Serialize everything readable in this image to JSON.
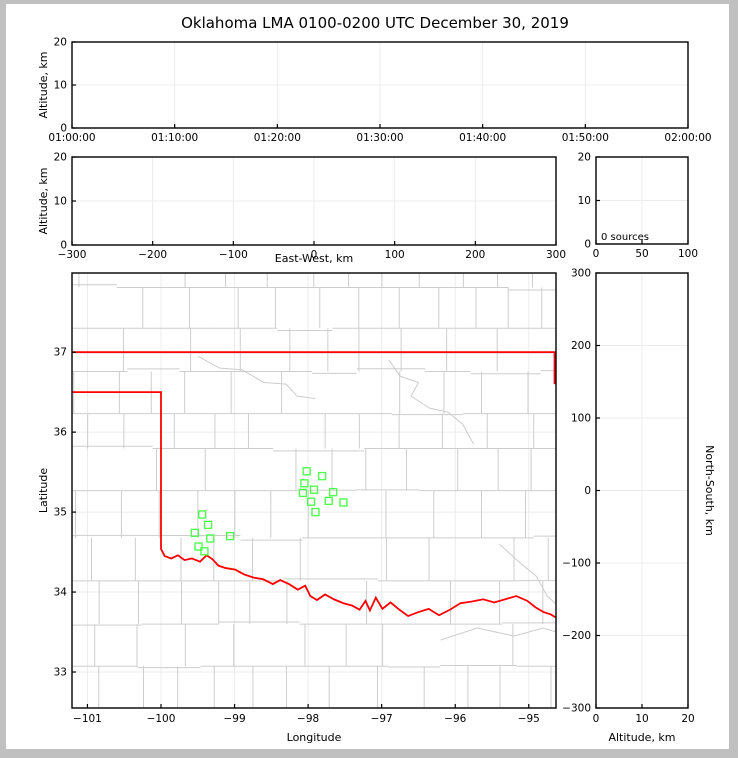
{
  "window": {
    "frame_color": "#c0c0c0",
    "background": "#ffffff"
  },
  "title": "Oklahoma LMA 0100-0200 UTC December 30, 2019",
  "colors": {
    "axis": "#000000",
    "grid": "#ececec",
    "county": "#cdcdcd",
    "river": "#cdcdcd",
    "state_border": "#ff0000",
    "station": "#50ff50",
    "text": "#000000"
  },
  "chart_data": [
    {
      "id": "time_height",
      "type": "scatter",
      "xlabel": "",
      "ylabel": "Altitude, km",
      "xticks": [
        "01:00:00",
        "01:10:00",
        "01:20:00",
        "01:30:00",
        "01:40:00",
        "01:50:00",
        "02:00:00"
      ],
      "ylim": [
        0,
        20
      ],
      "yticks": [
        0,
        10,
        20
      ],
      "series": [],
      "source_count": 0
    },
    {
      "id": "ew_height",
      "type": "scatter",
      "xlabel": "East-West, km",
      "ylabel": "Altitude, km",
      "xlim": [
        -300,
        300
      ],
      "xticks": [
        -300,
        -200,
        -100,
        0,
        100,
        200,
        300
      ],
      "ylim": [
        0,
        20
      ],
      "yticks": [
        0,
        10,
        20
      ],
      "series": []
    },
    {
      "id": "alt_histogram",
      "type": "line",
      "xlabel": "",
      "ylabel": "",
      "xlim": [
        0,
        100
      ],
      "xticks": [
        0,
        50,
        100
      ],
      "ylim": [
        0,
        20
      ],
      "yticks": [
        0,
        10,
        20
      ],
      "annotation": "0 sources",
      "series": []
    },
    {
      "id": "plan_map",
      "type": "scatter",
      "xlabel": "Longitude",
      "ylabel": "Latitude",
      "xlim": [
        -101.21,
        -94.63
      ],
      "xticks": [
        -101,
        -100,
        -99,
        -98,
        -97,
        -96,
        -95
      ],
      "ylim": [
        32.55,
        37.99
      ],
      "yticks": [
        33,
        34,
        35,
        36,
        37
      ],
      "stations": [
        [
          -98.02,
          35.51
        ],
        [
          -97.81,
          35.45
        ],
        [
          -98.05,
          35.36
        ],
        [
          -97.92,
          35.28
        ],
        [
          -97.66,
          35.25
        ],
        [
          -98.07,
          35.24
        ],
        [
          -97.96,
          35.13
        ],
        [
          -97.72,
          35.14
        ],
        [
          -97.52,
          35.12
        ],
        [
          -97.9,
          35.0
        ],
        [
          -99.44,
          34.97
        ],
        [
          -99.36,
          34.84
        ],
        [
          -99.54,
          34.74
        ],
        [
          -99.06,
          34.7
        ],
        [
          -99.33,
          34.67
        ],
        [
          -99.49,
          34.57
        ],
        [
          -99.41,
          34.51
        ]
      ],
      "state_border": {
        "north": [
          [
            -101.21,
            37.0
          ],
          [
            -94.63,
            37.0
          ]
        ],
        "east": [
          [
            -94.65,
            37.0
          ],
          [
            -94.65,
            36.6
          ]
        ],
        "west_south": [
          [
            -101.21,
            36.5
          ],
          [
            -100.0,
            36.5
          ],
          [
            -100.0,
            34.54
          ],
          [
            -99.95,
            34.45
          ],
          [
            -99.86,
            34.42
          ],
          [
            -99.77,
            34.46
          ],
          [
            -99.68,
            34.4
          ],
          [
            -99.58,
            34.42
          ],
          [
            -99.47,
            34.38
          ],
          [
            -99.38,
            34.46
          ],
          [
            -99.3,
            34.41
          ],
          [
            -99.22,
            34.33
          ],
          [
            -99.12,
            34.3
          ],
          [
            -98.99,
            34.28
          ],
          [
            -98.87,
            34.22
          ],
          [
            -98.74,
            34.18
          ],
          [
            -98.61,
            34.16
          ],
          [
            -98.48,
            34.1
          ],
          [
            -98.38,
            34.15
          ],
          [
            -98.26,
            34.1
          ],
          [
            -98.14,
            34.03
          ],
          [
            -98.04,
            34.08
          ],
          [
            -97.97,
            33.95
          ],
          [
            -97.88,
            33.9
          ],
          [
            -97.77,
            33.97
          ],
          [
            -97.65,
            33.91
          ],
          [
            -97.52,
            33.86
          ],
          [
            -97.4,
            33.83
          ],
          [
            -97.3,
            33.78
          ],
          [
            -97.22,
            33.89
          ],
          [
            -97.16,
            33.77
          ],
          [
            -97.08,
            33.93
          ],
          [
            -96.99,
            33.79
          ],
          [
            -96.88,
            33.87
          ],
          [
            -96.76,
            33.78
          ],
          [
            -96.64,
            33.7
          ],
          [
            -96.5,
            33.75
          ],
          [
            -96.36,
            33.79
          ],
          [
            -96.22,
            33.71
          ],
          [
            -96.07,
            33.78
          ],
          [
            -95.93,
            33.86
          ],
          [
            -95.78,
            33.88
          ],
          [
            -95.62,
            33.91
          ],
          [
            -95.47,
            33.87
          ],
          [
            -95.32,
            33.91
          ],
          [
            -95.17,
            33.95
          ],
          [
            -95.02,
            33.89
          ],
          [
            -94.91,
            33.81
          ],
          [
            -94.8,
            33.75
          ],
          [
            -94.7,
            33.72
          ],
          [
            -94.63,
            33.68
          ]
        ]
      }
    },
    {
      "id": "ns_height",
      "type": "scatter",
      "xlabel": "Altitude, km",
      "ylabel": "North-South, km",
      "xlim": [
        0,
        20
      ],
      "xticks": [
        0,
        10,
        20
      ],
      "ylim": [
        -300,
        300
      ],
      "yticks": [
        -300,
        -200,
        -100,
        0,
        100,
        200,
        300
      ],
      "series": []
    }
  ]
}
